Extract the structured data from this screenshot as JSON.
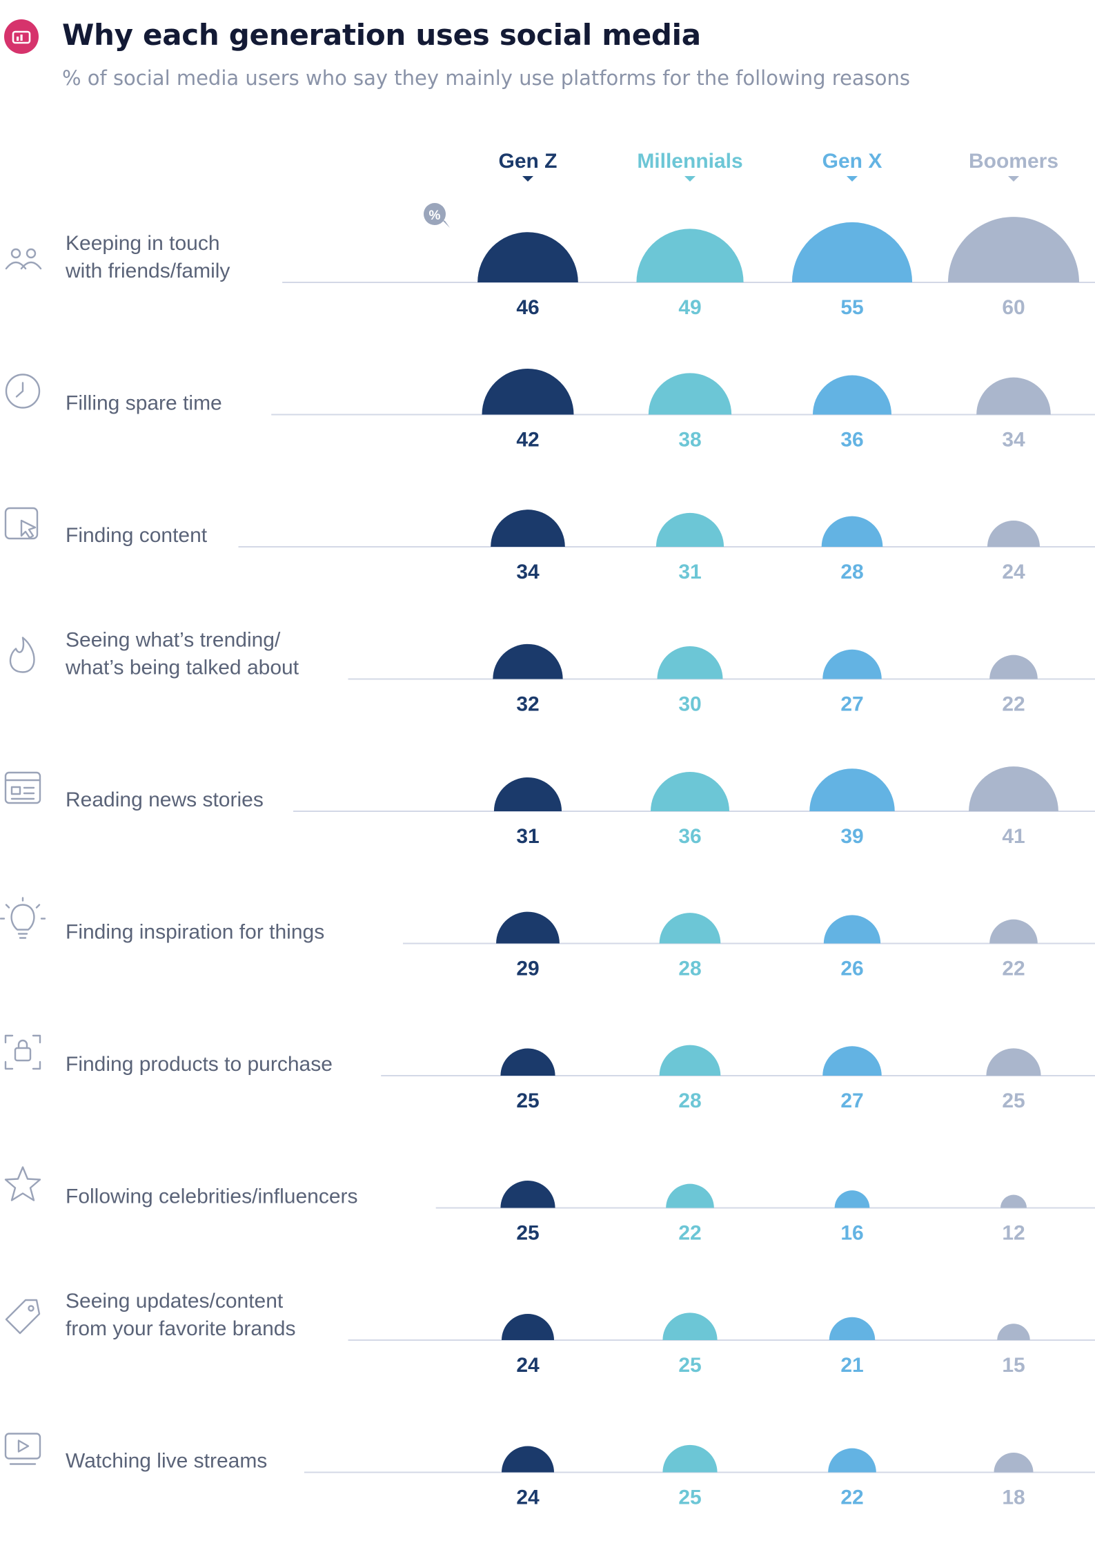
{
  "header": {
    "title": "Why each generation uses social media",
    "subtitle": "% of social media users who say they mainly use platforms for the following reasons"
  },
  "chart_data": {
    "type": "semicircle-bubble",
    "unit_badge": "%",
    "title": "Why each generation uses social media",
    "subtitle": "% of social media users who say they mainly use platforms for the following reasons",
    "series": [
      {
        "name": "Gen Z",
        "color": "#1b3a6b",
        "values": [
          46,
          42,
          34,
          32,
          31,
          29,
          25,
          25,
          24,
          24
        ]
      },
      {
        "name": "Millennials",
        "color": "#6cc6d6",
        "values": [
          49,
          38,
          31,
          30,
          36,
          28,
          28,
          22,
          25,
          25
        ]
      },
      {
        "name": "Gen X",
        "color": "#63b3e3",
        "values": [
          55,
          36,
          28,
          27,
          39,
          26,
          27,
          16,
          21,
          22
        ]
      },
      {
        "name": "Boomers",
        "color": "#aab6cc",
        "values": [
          60,
          34,
          24,
          22,
          41,
          22,
          25,
          12,
          15,
          18
        ]
      }
    ],
    "categories": [
      {
        "lines": [
          "Keeping in touch",
          "with friends/family"
        ],
        "icon": "people-icon"
      },
      {
        "lines": [
          "Filling spare time"
        ],
        "icon": "clock-icon"
      },
      {
        "lines": [
          "Finding content"
        ],
        "icon": "cursor-click-icon"
      },
      {
        "lines": [
          "Seeing what’s trending/",
          "what’s being talked about"
        ],
        "icon": "flame-icon"
      },
      {
        "lines": [
          "Reading news stories"
        ],
        "icon": "newspaper-icon"
      },
      {
        "lines": [
          "Finding inspiration for things"
        ],
        "icon": "lightbulb-icon"
      },
      {
        "lines": [
          "Finding products to purchase"
        ],
        "icon": "shopping-bag-icon"
      },
      {
        "lines": [
          "Following celebrities/influencers"
        ],
        "icon": "star-icon"
      },
      {
        "lines": [
          "Seeing updates/content",
          "from your favorite brands"
        ],
        "icon": "tag-icon"
      },
      {
        "lines": [
          "Watching live streams"
        ],
        "icon": "play-screen-icon"
      }
    ]
  },
  "colors": {
    "brand": "#d6336c",
    "title": "#131a35",
    "subtitle": "#8a93a8",
    "label": "#5a6378",
    "baseline": "#d3d8e6"
  }
}
